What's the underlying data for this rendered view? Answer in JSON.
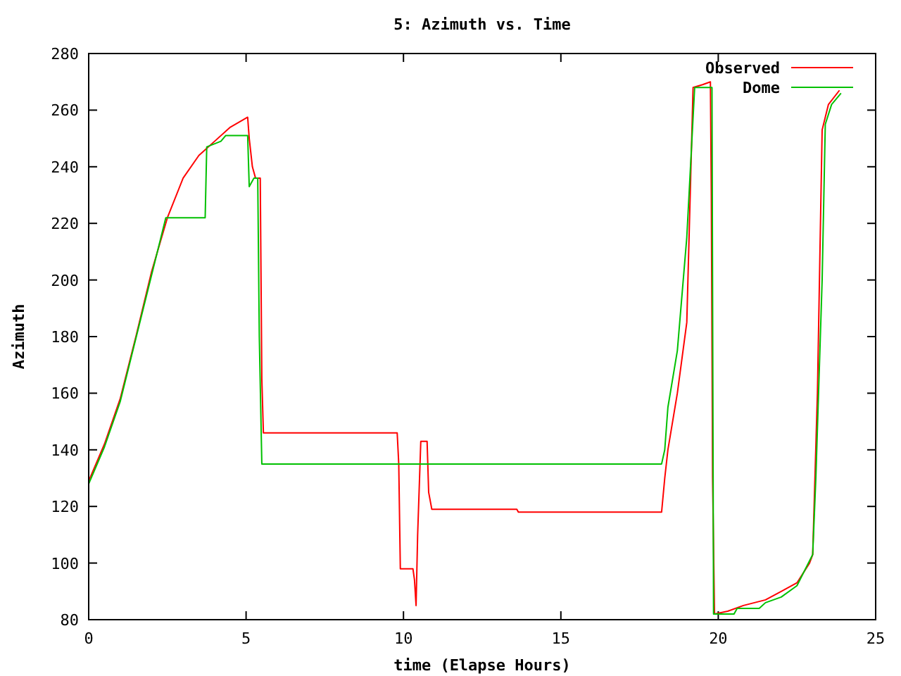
{
  "chart_data": {
    "type": "line",
    "title": "5: Azimuth vs. Time",
    "xlabel": "time (Elapse Hours)",
    "ylabel": "Azimuth",
    "xlim": [
      0,
      25
    ],
    "xticks": [
      0,
      5,
      10,
      15,
      20,
      25
    ],
    "ylim": [
      80,
      280
    ],
    "yticks": [
      80,
      100,
      120,
      140,
      160,
      180,
      200,
      220,
      240,
      260,
      280
    ],
    "grid": false,
    "legend": "top right",
    "marker": "none",
    "line_style": "solid",
    "series": [
      {
        "name": "Observed",
        "color": "#ff0000",
        "x": [
          0,
          0.5,
          1,
          1.5,
          2,
          2.5,
          3,
          3.5,
          4,
          4.5,
          5.05,
          5.1,
          5.2,
          5.3,
          5.45,
          5.5,
          5.55,
          9.8,
          9.85,
          9.9,
          10.3,
          10.35,
          10.4,
          10.45,
          10.55,
          10.75,
          10.8,
          10.9,
          13.6,
          13.65,
          18.2,
          18.3,
          18.4,
          18.7,
          19.0,
          19.2,
          19.5,
          19.75,
          19.78,
          19.82,
          19.88,
          20.3,
          20.8,
          21.5,
          22,
          22.5,
          22.9,
          23.0,
          23.15,
          23.3,
          23.5,
          23.85
        ],
        "values": [
          129,
          142,
          158,
          180,
          203,
          222,
          236,
          244,
          249,
          254,
          257.5,
          250,
          240,
          236,
          236,
          165,
          146,
          146,
          135,
          98,
          98,
          94,
          85,
          110,
          143,
          143,
          125,
          119,
          119,
          118,
          118,
          130,
          140,
          160,
          185,
          268,
          269,
          270,
          230,
          130,
          82,
          83,
          85,
          87,
          90,
          93,
          100,
          103,
          160,
          253,
          262,
          267
        ]
      },
      {
        "name": "Dome",
        "color": "#00c000",
        "x": [
          0,
          0.5,
          1,
          2.45,
          3.7,
          3.75,
          4.2,
          4.35,
          5.05,
          5.1,
          5.25,
          5.37,
          5.42,
          5.5,
          18.2,
          18.3,
          18.4,
          18.7,
          19.0,
          19.25,
          19.8,
          19.85,
          20.5,
          20.6,
          21.3,
          21.5,
          22.0,
          22.5,
          23.0,
          23.1,
          23.3,
          23.4,
          23.6,
          23.9
        ],
        "values": [
          128,
          141,
          157,
          222,
          222,
          247,
          249,
          251,
          251,
          233,
          236,
          236,
          180,
          135,
          135,
          140,
          155,
          175,
          215,
          268,
          268,
          82,
          82,
          84,
          84,
          86,
          88,
          92,
          103,
          130,
          200,
          255,
          262,
          266
        ]
      }
    ]
  }
}
